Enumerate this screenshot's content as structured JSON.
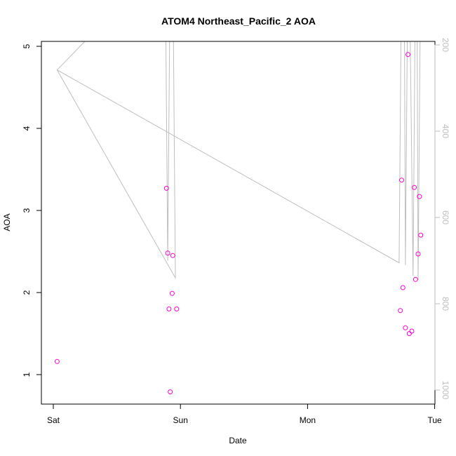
{
  "chart_data": {
    "type": "scatter",
    "title": "ATOM4 Northeast_Pacific_2 AOA",
    "xlabel": "Date",
    "ylabel": "AOA",
    "x_ticks": [
      "Sat",
      "Sun",
      "Mon",
      "Tue"
    ],
    "x_unit": "days since Saturday 00:00",
    "xlim": [
      -0.05,
      3.0
    ],
    "ylim": [
      0.65,
      5.07
    ],
    "y_ticks": [
      1,
      2,
      3,
      4,
      5
    ],
    "y2_ticks": [
      200,
      400,
      600,
      800,
      1000
    ],
    "y2lim": [
      1008,
      196
    ],
    "grid": false,
    "point_color": "#ff00cc",
    "line_color": "#bebebe",
    "points": [
      {
        "x": 0.03,
        "y": 1.16
      },
      {
        "x": 0.89,
        "y": 3.27
      },
      {
        "x": 0.9,
        "y": 2.48
      },
      {
        "x": 0.91,
        "y": 1.8
      },
      {
        "x": 0.92,
        "y": 0.79
      },
      {
        "x": 0.94,
        "y": 2.45
      },
      {
        "x": 0.935,
        "y": 1.99
      },
      {
        "x": 0.97,
        "y": 1.8
      },
      {
        "x": 2.73,
        "y": 1.78
      },
      {
        "x": 2.74,
        "y": 3.37
      },
      {
        "x": 2.75,
        "y": 2.06
      },
      {
        "x": 2.77,
        "y": 1.57
      },
      {
        "x": 2.79,
        "y": 4.9
      },
      {
        "x": 2.8,
        "y": 1.5
      },
      {
        "x": 2.82,
        "y": 1.53
      },
      {
        "x": 2.84,
        "y": 3.28
      },
      {
        "x": 2.85,
        "y": 2.16
      },
      {
        "x": 2.87,
        "y": 2.47
      },
      {
        "x": 2.88,
        "y": 3.17
      },
      {
        "x": 2.89,
        "y": 2.7
      }
    ],
    "pressure_trace": [
      {
        "x": 0.03,
        "p": 258
      },
      {
        "x": 0.96,
        "p": 740
      },
      {
        "x": 0.94,
        "p": 0
      },
      {
        "x": 0.92,
        "p": 0
      },
      {
        "x": 0.9,
        "p": 700
      },
      {
        "x": 0.88,
        "p": 0
      },
      {
        "x": 0.03,
        "p": 258
      },
      {
        "x": 2.72,
        "p": 705
      },
      {
        "x": 2.74,
        "p": 0
      },
      {
        "x": 2.76,
        "p": 0
      },
      {
        "x": 2.77,
        "p": 710
      },
      {
        "x": 2.79,
        "p": 0
      },
      {
        "x": 2.8,
        "p": 0
      },
      {
        "x": 2.83,
        "p": 735
      },
      {
        "x": 2.85,
        "p": 0
      },
      {
        "x": 2.86,
        "p": 0
      },
      {
        "x": 2.87,
        "p": 745
      },
      {
        "x": 2.89,
        "p": 0
      }
    ]
  }
}
